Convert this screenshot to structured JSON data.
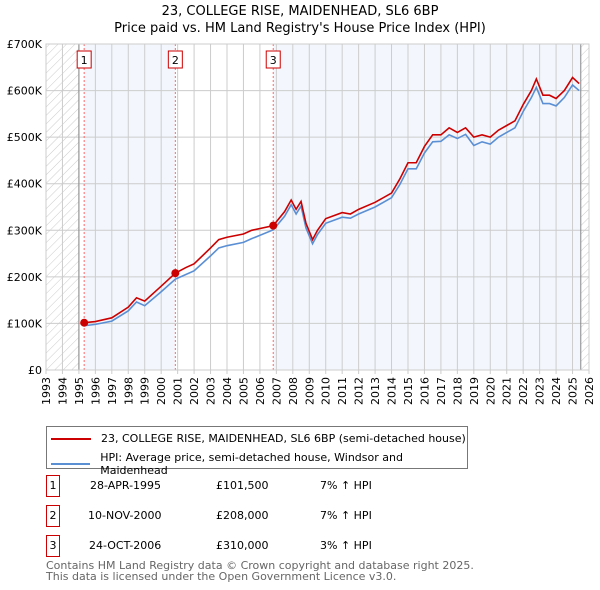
{
  "title": "23, COLLEGE RISE, MAIDENHEAD, SL6 6BP",
  "subtitle": "Price paid vs. HM Land Registry's House Price Index (HPI)",
  "chart_data": {
    "type": "line",
    "xlim": [
      1993,
      2026
    ],
    "ylim": [
      0,
      700000
    ],
    "yticks": [
      0,
      100000,
      200000,
      300000,
      400000,
      500000,
      600000,
      700000
    ],
    "ytick_labels": [
      "£0",
      "£100K",
      "£200K",
      "£300K",
      "£400K",
      "£500K",
      "£600K",
      "£700K"
    ],
    "xticks": [
      "1993",
      "1994",
      "1995",
      "1996",
      "1997",
      "1998",
      "1999",
      "2000",
      "2001",
      "2002",
      "2003",
      "2004",
      "2005",
      "2006",
      "2007",
      "2008",
      "2009",
      "2010",
      "2011",
      "2012",
      "2013",
      "2014",
      "2015",
      "2016",
      "2017",
      "2018",
      "2019",
      "2020",
      "2021",
      "2022",
      "2023",
      "2024",
      "2025",
      "2026"
    ],
    "x": [
      1995.32,
      1996,
      1997,
      1998,
      1998.5,
      1999,
      2000,
      2000.86,
      2001.5,
      2002,
      2003,
      2003.5,
      2004,
      2005,
      2005.5,
      2006.81,
      2007.5,
      2007.9,
      2008.2,
      2008.5,
      2008.8,
      2009.2,
      2009.5,
      2010,
      2011,
      2011.5,
      2012,
      2013,
      2014,
      2014.5,
      2015,
      2015.5,
      2016,
      2016.5,
      2017,
      2017.5,
      2018,
      2018.5,
      2019,
      2019.5,
      2020,
      2020.5,
      2021,
      2021.5,
      2022,
      2022.5,
      2022.8,
      2023.2,
      2023.6,
      2024,
      2024.5,
      2025,
      2025.4
    ],
    "series": [
      {
        "name": "23, COLLEGE RISE, MAIDENHEAD, SL6 6BP (semi-detached house)",
        "color": "#cc0000",
        "values": [
          101500,
          104000,
          112000,
          135000,
          155000,
          148000,
          180000,
          208000,
          220000,
          228000,
          262000,
          280000,
          285000,
          292000,
          300000,
          310000,
          340000,
          365000,
          345000,
          362000,
          315000,
          280000,
          300000,
          325000,
          338000,
          335000,
          345000,
          360000,
          380000,
          410000,
          445000,
          445000,
          480000,
          505000,
          505000,
          520000,
          510000,
          520000,
          500000,
          505000,
          500000,
          515000,
          525000,
          535000,
          570000,
          600000,
          625000,
          590000,
          590000,
          583000,
          600000,
          628000,
          615000
        ]
      },
      {
        "name": "HPI: Average price, semi-detached house, Windsor and Maidenhead",
        "color": "#5b8fd4",
        "values": [
          95000,
          98000,
          105000,
          127000,
          146000,
          138000,
          168000,
          195000,
          205000,
          213000,
          245000,
          262000,
          267000,
          274000,
          282000,
          301000,
          330000,
          355000,
          335000,
          352000,
          305000,
          271000,
          291000,
          315000,
          328000,
          326000,
          335000,
          350000,
          370000,
          398000,
          432000,
          432000,
          466000,
          490000,
          491000,
          505000,
          497000,
          506000,
          482000,
          490000,
          485000,
          500000,
          510000,
          520000,
          555000,
          585000,
          607000,
          572000,
          572000,
          567000,
          585000,
          612000,
          600000
        ]
      }
    ],
    "sales": [
      {
        "label": "1",
        "x": 1995.32,
        "price": 101500,
        "date": "28-APR-1995",
        "amount": "£101,500",
        "hpi": "7% ↑ HPI"
      },
      {
        "label": "2",
        "x": 2000.86,
        "price": 208000,
        "date": "10-NOV-2000",
        "amount": "£208,000",
        "hpi": "7% ↑ HPI"
      },
      {
        "label": "3",
        "x": 2006.81,
        "price": 310000,
        "date": "24-OCT-2006",
        "amount": "£310,000",
        "hpi": "3% ↑ HPI"
      }
    ],
    "hatch_before": 1995.0,
    "hatch_after": 2025.5
  },
  "footer": [
    "Contains HM Land Registry data © Crown copyright and database right 2025.",
    "This data is licensed under the Open Government Licence v3.0."
  ]
}
